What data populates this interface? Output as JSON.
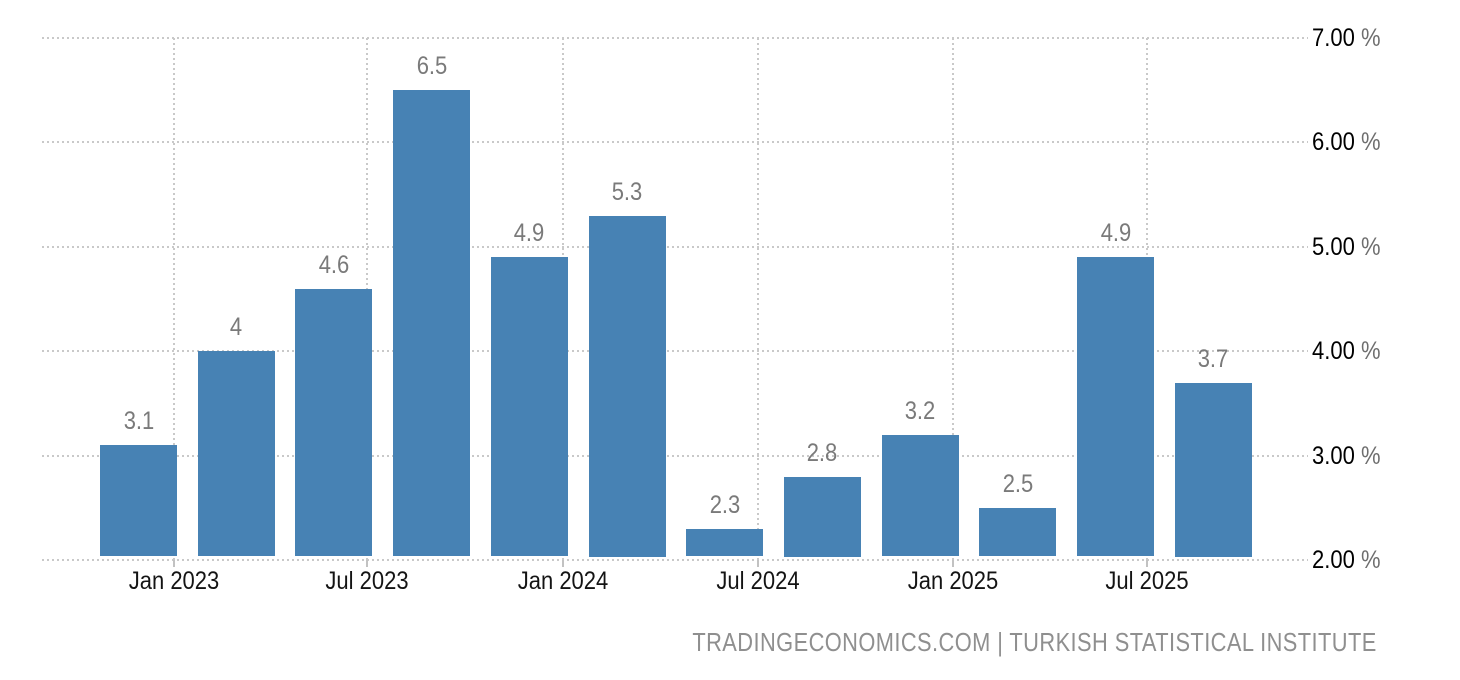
{
  "chart_data": {
    "type": "bar",
    "title": "",
    "categories": [
      "2023-Q1",
      "2023-Q2",
      "2023-Q3",
      "2023-Q4",
      "2024-Q1",
      "2024-Q2",
      "2024-Q3",
      "2024-Q4",
      "2025-Q1",
      "2025-Q2",
      "2025-Q3",
      "2025-Q4"
    ],
    "values": [
      3.1,
      4,
      4.6,
      6.5,
      4.9,
      5.3,
      2.3,
      2.8,
      3.2,
      2.5,
      4.9,
      3.7
    ],
    "bar_labels": [
      "3.1",
      "4",
      "4.6",
      "6.5",
      "4.9",
      "5.3",
      "2.3",
      "2.8",
      "3.2",
      "2.5",
      "4.9",
      "3.7"
    ],
    "x_axis": {
      "tick_labels": [
        "Jan 2023",
        "Jul 2023",
        "Jan 2024",
        "Jul 2024",
        "Jan 2025",
        "Jul 2025"
      ]
    },
    "y_axis": {
      "side": "right",
      "unit": "%",
      "ticks": [
        {
          "label": "7.00",
          "value": 7
        },
        {
          "label": "6.00",
          "value": 6
        },
        {
          "label": "5.00",
          "value": 5
        },
        {
          "label": "4.00",
          "value": 4
        },
        {
          "label": "3.00",
          "value": 3
        },
        {
          "label": "2.00",
          "value": 2
        }
      ]
    },
    "ylim": [
      2,
      7
    ],
    "grid": "dotted",
    "legend": null,
    "colors": {
      "bar": "#4782B4",
      "grid": "#c9c9c9",
      "tick": "#c2c2c2",
      "bar_label": "#7a7a7a",
      "x_tick_label": "#141414",
      "y_tick_number": "#000000",
      "y_tick_unit": "#6e6e6e",
      "attribution": "#8f8f8f",
      "background": "#ffffff"
    }
  },
  "footer": {
    "attribution": "TRADINGECONOMICS.COM | TURKISH STATISTICAL INSTITUTE"
  }
}
